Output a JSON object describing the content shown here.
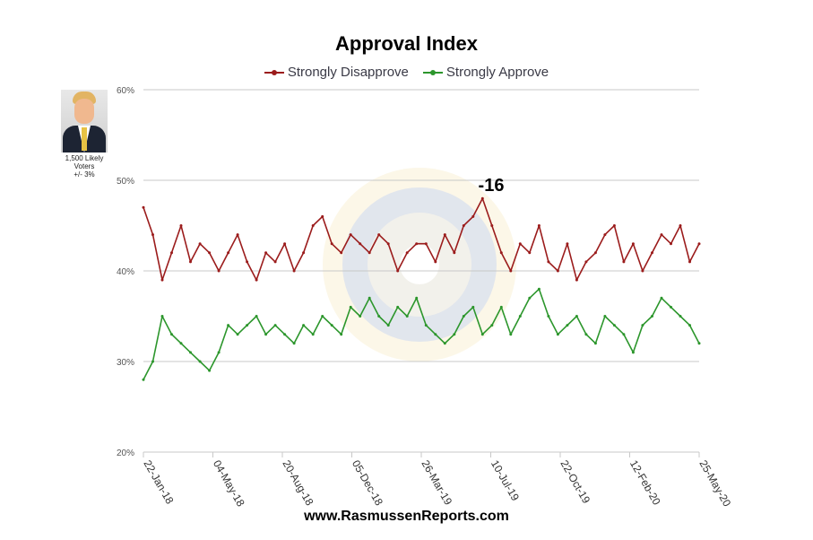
{
  "chart_data": {
    "type": "line",
    "title": "Approval Index",
    "annotation": "-16",
    "ylim": [
      20,
      60
    ],
    "yticks": [
      "60%",
      "50%",
      "40%",
      "30%",
      "20%"
    ],
    "ytick_values": [
      60,
      50,
      40,
      30,
      20
    ],
    "xticks": [
      "22-Jan-18",
      "04-May-18",
      "20-Aug-18",
      "05-Dec-18",
      "26-Mar-19",
      "10-Jul-19",
      "22-Oct-19",
      "12-Feb-20",
      "25-May-20"
    ],
    "n_points": 60,
    "series": [
      {
        "name": "Strongly Disapprove",
        "color": "#9b1c1c",
        "values": [
          47,
          44,
          39,
          42,
          45,
          41,
          43,
          42,
          40,
          42,
          44,
          41,
          39,
          42,
          41,
          43,
          40,
          42,
          45,
          46,
          43,
          42,
          44,
          43,
          42,
          44,
          43,
          40,
          42,
          43,
          43,
          41,
          44,
          42,
          45,
          46,
          48,
          45,
          42,
          40,
          43,
          42,
          45,
          41,
          40,
          43,
          39,
          41,
          42,
          44,
          45,
          41,
          43,
          40,
          42,
          44,
          43,
          45,
          41,
          43
        ]
      },
      {
        "name": "Strongly Approve",
        "color": "#2c962c",
        "values": [
          28,
          30,
          35,
          33,
          32,
          31,
          30,
          29,
          31,
          34,
          33,
          34,
          35,
          33,
          34,
          33,
          32,
          34,
          33,
          35,
          34,
          33,
          36,
          35,
          37,
          35,
          34,
          36,
          35,
          37,
          34,
          33,
          32,
          33,
          35,
          36,
          33,
          34,
          36,
          33,
          35,
          37,
          38,
          35,
          33,
          34,
          35,
          33,
          32,
          35,
          34,
          33,
          31,
          34,
          35,
          37,
          36,
          35,
          34,
          32
        ]
      }
    ]
  },
  "portrait_caption": [
    "1,500 Likely",
    "Voters",
    "+/- 3%"
  ],
  "website": "www.RasmussenReports.com"
}
